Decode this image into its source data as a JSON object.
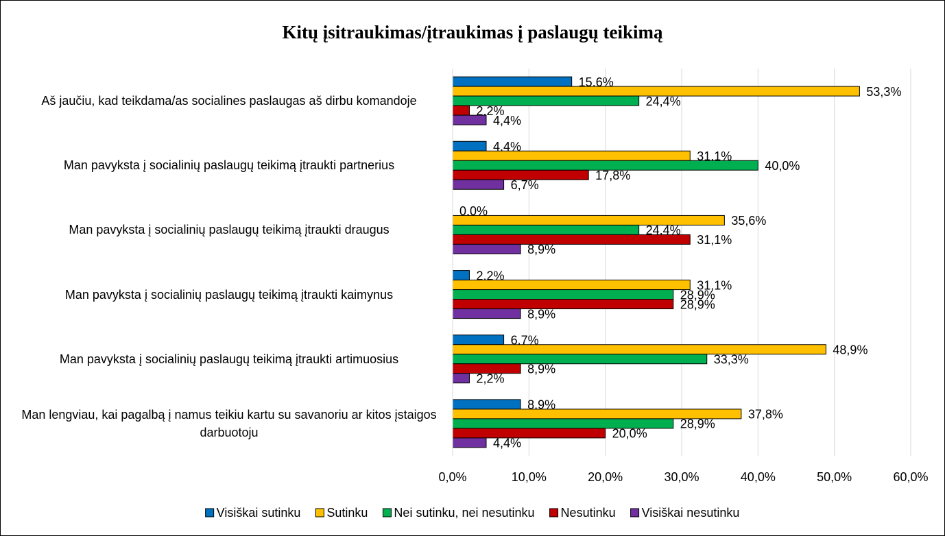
{
  "chart_data": {
    "type": "bar",
    "orientation": "horizontal",
    "title": "Kitų įsitraukimas/įtraukimas į paslaugų teikimą",
    "categories": [
      "Aš jaučiu, kad teikdama/as socialines paslaugas aš dirbu komandoje",
      "Man pavyksta į socialinių paslaugų teikimą įtraukti partnerius",
      "Man pavyksta į socialinių paslaugų teikimą įtraukti draugus",
      "Man pavyksta į socialinių paslaugų teikimą įtraukti kaimynus",
      "Man pavyksta į socialinių paslaugų teikimą įtraukti artimuosius",
      "Man lengviau, kai pagalbą į namus teikiu kartu su savanoriu ar kitos įstaigos darbuotoju"
    ],
    "series": [
      {
        "name": "Visiškai sutinku",
        "color": "#0070c0",
        "values": [
          15.6,
          4.4,
          0.0,
          2.2,
          6.7,
          8.9
        ],
        "value_labels": [
          "15,6%",
          "4,4%",
          "0,0%",
          "2,2%",
          "6,7%",
          "8,9%"
        ]
      },
      {
        "name": "Sutinku",
        "color": "#ffc000",
        "values": [
          53.3,
          31.1,
          35.6,
          31.1,
          48.9,
          37.8
        ],
        "value_labels": [
          "53,3%",
          "31,1%",
          "35,6%",
          "31,1%",
          "48,9%",
          "37,8%"
        ]
      },
      {
        "name": "Nei sutinku, nei nesutinku",
        "color": "#00b050",
        "values": [
          24.4,
          40.0,
          24.4,
          28.9,
          33.3,
          28.9
        ],
        "value_labels": [
          "24,4%",
          "40,0%",
          "24,4%",
          "28,9%",
          "33,3%",
          "28,9%"
        ]
      },
      {
        "name": "Nesutinku",
        "color": "#c00000",
        "values": [
          2.2,
          17.8,
          31.1,
          28.9,
          8.9,
          20.0
        ],
        "value_labels": [
          "2,2%",
          "17,8%",
          "31,1%",
          "28,9%",
          "8,9%",
          "20,0%"
        ]
      },
      {
        "name": "Visiškai nesutinku",
        "color": "#7030a0",
        "values": [
          4.4,
          6.7,
          8.9,
          8.9,
          2.2,
          4.4
        ],
        "value_labels": [
          "4,4%",
          "6,7%",
          "8,9%",
          "8,9%",
          "2,2%",
          "4,4%"
        ]
      }
    ],
    "xlim": [
      0,
      60
    ],
    "xticks": [
      {
        "value": 0,
        "label": "0,0%"
      },
      {
        "value": 10,
        "label": "10,0%"
      },
      {
        "value": 20,
        "label": "20,0%"
      },
      {
        "value": 30,
        "label": "30,0%"
      },
      {
        "value": 40,
        "label": "40,0%"
      },
      {
        "value": 50,
        "label": "50,0%"
      },
      {
        "value": 60,
        "label": "60,0%"
      }
    ],
    "grid": true,
    "legend": "bottom"
  }
}
